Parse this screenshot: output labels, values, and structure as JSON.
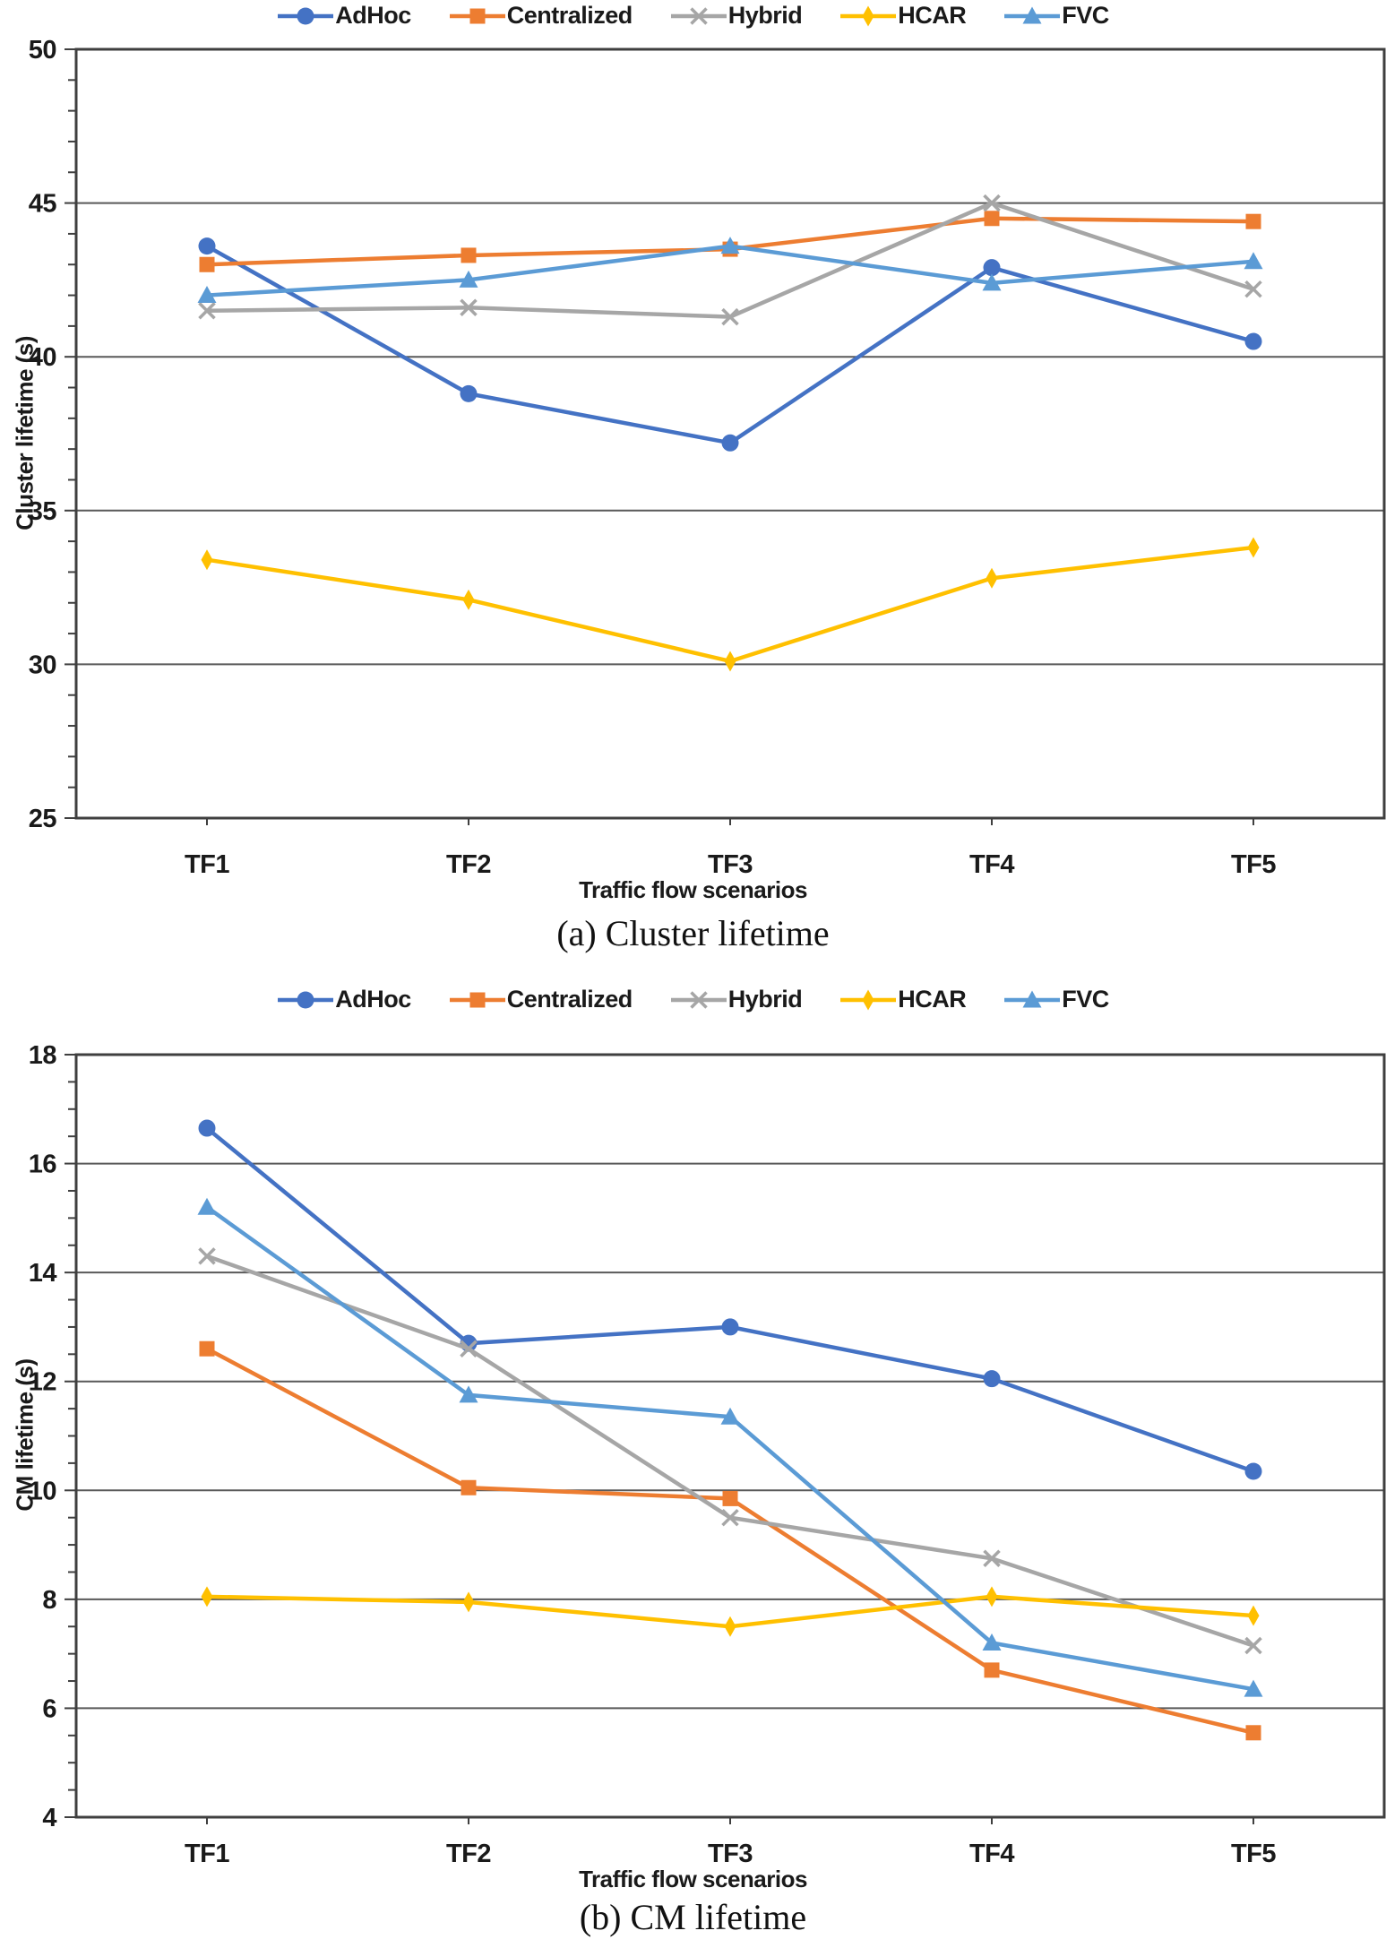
{
  "page": {
    "background": "#ffffff",
    "text_color": "#1a1a1a"
  },
  "style": {
    "grid_color": "#595959",
    "axis_color": "#3f3f3f",
    "tick_label_color": "#1a1a1a"
  },
  "chart_data": [
    {
      "id": "cluster-lifetime",
      "type": "line",
      "caption": "(a) Cluster lifetime",
      "xlabel": "Traffic flow scenarios",
      "ylabel": "Cluster lifetime (s)",
      "categories": [
        "TF1",
        "TF2",
        "TF3",
        "TF4",
        "TF5"
      ],
      "ylim": [
        25,
        50
      ],
      "y_major": 5,
      "y_minor": 1,
      "grid": true,
      "legend_position": "top",
      "series": [
        {
          "name": "AdHoc",
          "color": "#4472C4",
          "marker": "circle",
          "values": [
            43.6,
            38.8,
            37.2,
            42.9,
            40.5
          ]
        },
        {
          "name": "Centralized",
          "color": "#ED7D31",
          "marker": "square",
          "values": [
            43.0,
            43.3,
            43.5,
            44.5,
            44.4
          ]
        },
        {
          "name": "Hybrid",
          "color": "#A6A6A6",
          "marker": "x",
          "values": [
            41.5,
            41.6,
            41.3,
            45.0,
            42.2
          ]
        },
        {
          "name": "HCAR",
          "color": "#FFC000",
          "marker": "diamond",
          "values": [
            33.4,
            32.1,
            30.1,
            32.8,
            33.8
          ]
        },
        {
          "name": "FVC",
          "color": "#5B9BD5",
          "marker": "triangle",
          "values": [
            42.0,
            42.5,
            43.6,
            42.4,
            43.1
          ]
        }
      ]
    },
    {
      "id": "cm-lifetime",
      "type": "line",
      "caption": "(b) CM lifetime",
      "xlabel": "Traffic flow scenarios",
      "ylabel": "CM lifetime (s)",
      "categories": [
        "TF1",
        "TF2",
        "TF3",
        "TF4",
        "TF5"
      ],
      "ylim": [
        4,
        18
      ],
      "y_major": 2,
      "y_minor": 0.5,
      "grid": true,
      "legend_position": "top",
      "series": [
        {
          "name": "AdHoc",
          "color": "#4472C4",
          "marker": "circle",
          "values": [
            16.65,
            12.7,
            13.0,
            12.05,
            10.35
          ]
        },
        {
          "name": "Centralized",
          "color": "#ED7D31",
          "marker": "square",
          "values": [
            12.6,
            10.05,
            9.85,
            6.7,
            5.55
          ]
        },
        {
          "name": "Hybrid",
          "color": "#A6A6A6",
          "marker": "x",
          "values": [
            14.3,
            12.6,
            9.5,
            8.75,
            7.15
          ]
        },
        {
          "name": "HCAR",
          "color": "#FFC000",
          "marker": "diamond",
          "values": [
            8.05,
            7.95,
            7.5,
            8.05,
            7.7
          ]
        },
        {
          "name": "FVC",
          "color": "#5B9BD5",
          "marker": "triangle",
          "values": [
            15.2,
            11.75,
            11.35,
            7.2,
            6.35
          ]
        }
      ]
    }
  ]
}
